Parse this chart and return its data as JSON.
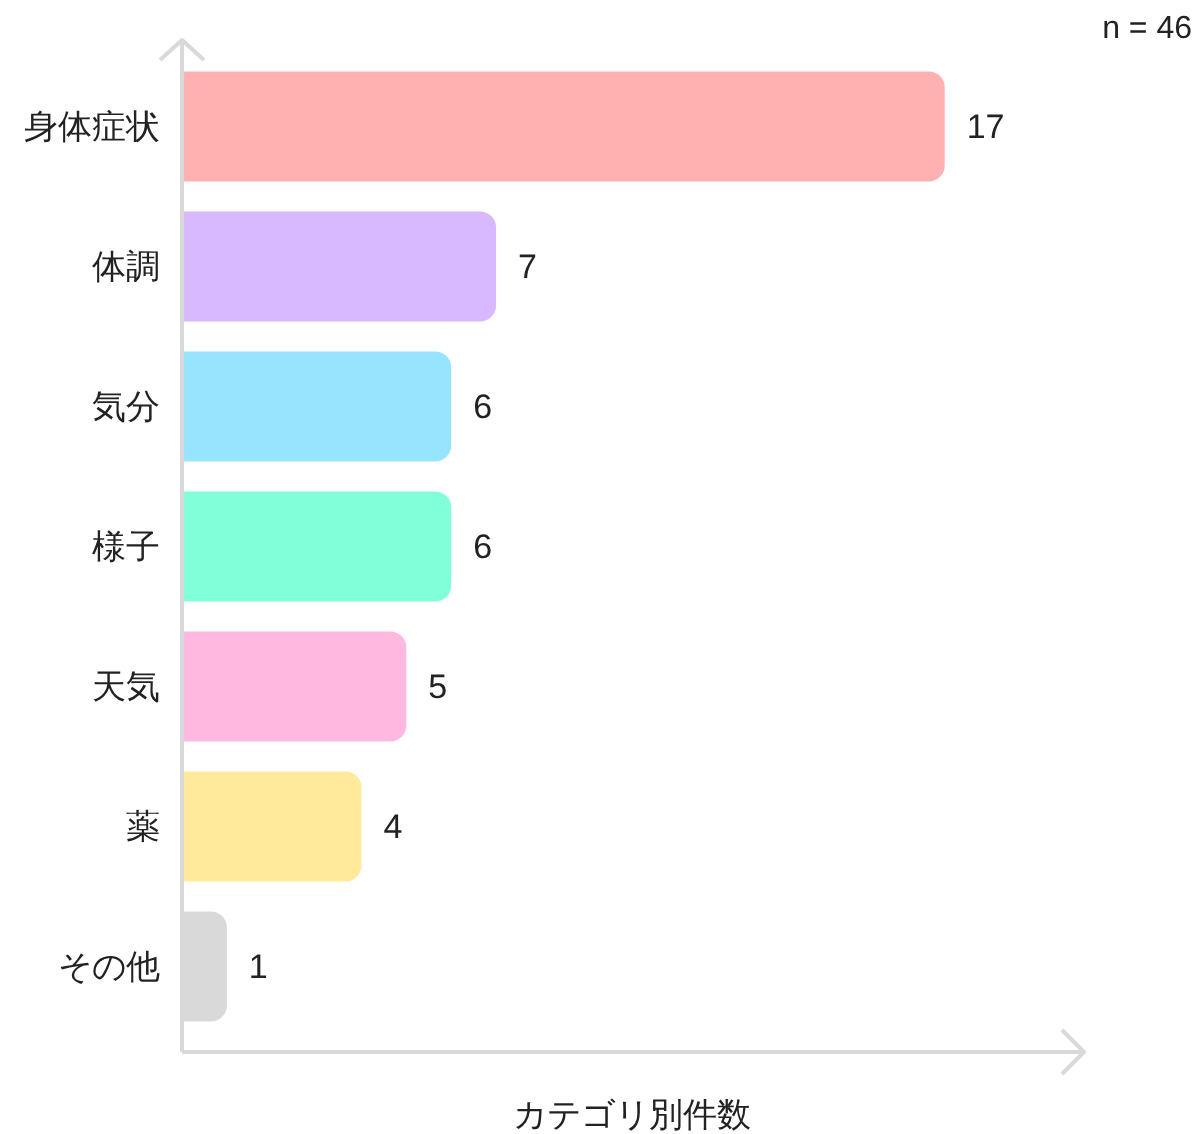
{
  "chart_data": {
    "type": "bar",
    "orientation": "horizontal",
    "categories": [
      "身体症状",
      "体調",
      "気分",
      "様子",
      "天気",
      "薬",
      "その他"
    ],
    "values": [
      17,
      7,
      6,
      6,
      5,
      4,
      1
    ],
    "colors": [
      "#ffb0b0",
      "#d8b8ff",
      "#96e4ff",
      "#80ffd8",
      "#ffb8e0",
      "#ffe99a",
      "#d9d9d9"
    ],
    "xlabel": "カテゴリ別件数",
    "annotations": [
      "n = 46"
    ],
    "data_labels": true,
    "tick_labels": "y"
  }
}
